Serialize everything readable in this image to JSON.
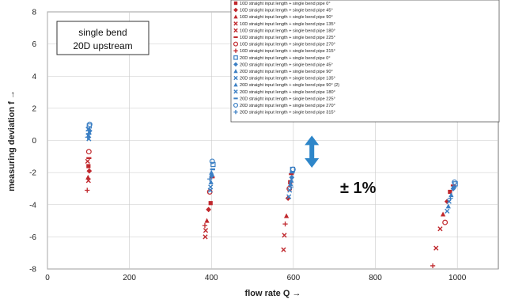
{
  "chart_data": {
    "type": "scatter",
    "xlabel": "flow rate Q →",
    "ylabel": "measuring deviation f →",
    "xlim": [
      0,
      1100
    ],
    "ylim": [
      -8,
      8
    ],
    "xticks": [
      0,
      200,
      400,
      600,
      800,
      1000
    ],
    "yticks": [
      -8,
      -6,
      -4,
      -2,
      0,
      2,
      4,
      6,
      8
    ],
    "grid": true,
    "legend_position": "top-right",
    "annotation_box": [
      "single bend",
      "20D upstream"
    ],
    "tolerance_label": "± 1%",
    "tolerance_range": [
      -1.7,
      0.3
    ],
    "tolerance_x": 645,
    "series": [
      {
        "name": "10D straight input length + single bend pipe 0°",
        "marker": "square",
        "color": "#c0282d",
        "points": [
          [
            100,
            -1.6
          ],
          [
            398,
            -3.9
          ],
          [
            592,
            -2.6
          ],
          [
            982,
            -3.2
          ]
        ]
      },
      {
        "name": "10D straight input length + single bend pipe 45°",
        "marker": "diamond",
        "color": "#c0282d",
        "points": [
          [
            102,
            -1.9
          ],
          [
            393,
            -4.3
          ],
          [
            587,
            -3.6
          ],
          [
            975,
            -3.8
          ]
        ]
      },
      {
        "name": "10D straight input length + single bend pipe 90°",
        "marker": "triangle",
        "color": "#c0282d",
        "points": [
          [
            99,
            -2.3
          ],
          [
            389,
            -5.0
          ],
          [
            583,
            -4.7
          ],
          [
            965,
            -4.6
          ]
        ]
      },
      {
        "name": "10D straight input length + single bend pipe 135°",
        "marker": "x",
        "color": "#c0282d",
        "points": [
          [
            100,
            -2.5
          ],
          [
            386,
            -5.6
          ],
          [
            578,
            -5.9
          ],
          [
            958,
            -5.5
          ]
        ]
      },
      {
        "name": "10D straight input length + single bend pipe 180°",
        "marker": "x",
        "color": "#c0282d",
        "points": [
          [
            98,
            -1.3
          ],
          [
            385,
            -6.0
          ],
          [
            576,
            -6.8
          ],
          [
            948,
            -6.7
          ]
        ]
      },
      {
        "name": "10D straight input length + single bend pipe 225°",
        "marker": "dash",
        "color": "#c0282d",
        "points": [
          [
            101,
            -1.1
          ],
          [
            402,
            -2.3
          ],
          [
            595,
            -2.1
          ],
          [
            990,
            -2.8
          ]
        ]
      },
      {
        "name": "10D straight input length + single bend pipe 270°",
        "marker": "circle",
        "color": "#c0282d",
        "points": [
          [
            101,
            -0.7
          ],
          [
            396,
            -3.2
          ],
          [
            590,
            -3.0
          ],
          [
            970,
            -5.1
          ]
        ]
      },
      {
        "name": "10D straight input length + single bend pipe 315°",
        "marker": "plus",
        "color": "#c0282d",
        "points": [
          [
            97,
            -3.1
          ],
          [
            384,
            -5.3
          ],
          [
            580,
            -5.2
          ],
          [
            940,
            -7.8
          ]
        ]
      },
      {
        "name": "20D straight input length + single bend pipe 0°",
        "marker": "square-open",
        "color": "#3b7fc4",
        "points": [
          [
            102,
            0.9
          ],
          [
            404,
            -1.5
          ],
          [
            598,
            -1.8
          ],
          [
            995,
            -2.7
          ]
        ]
      },
      {
        "name": "20D straight input length + single bend pipe 45°",
        "marker": "diamond",
        "color": "#3b7fc4",
        "points": [
          [
            103,
            0.6
          ],
          [
            401,
            -2.2
          ],
          [
            596,
            -2.3
          ],
          [
            990,
            -3.0
          ]
        ]
      },
      {
        "name": "20D straight input length + single bend pipe 90°",
        "marker": "triangle",
        "color": "#3b7fc4",
        "points": [
          [
            100,
            0.3
          ],
          [
            399,
            -2.6
          ],
          [
            593,
            -2.7
          ],
          [
            985,
            -3.4
          ]
        ]
      },
      {
        "name": "20D straight input length + single bend pipe 135°",
        "marker": "x",
        "color": "#3b7fc4",
        "points": [
          [
            101,
            0.1
          ],
          [
            398,
            -2.9
          ],
          [
            591,
            -3.1
          ],
          [
            980,
            -3.8
          ]
        ]
      },
      {
        "name": "20D straight input length + single bend pipe 90° (2)",
        "marker": "triangle",
        "color": "#3b7fc4",
        "points": [
          [
            102,
            0.5
          ],
          [
            400,
            -2.0
          ],
          [
            595,
            -2.5
          ],
          [
            978,
            -4.1
          ]
        ]
      },
      {
        "name": "20D straight input length + single bend pipe 180°",
        "marker": "x",
        "color": "#3b7fc4",
        "points": [
          [
            99,
            0.7
          ],
          [
            397,
            -3.1
          ],
          [
            589,
            -3.5
          ],
          [
            975,
            -4.4
          ]
        ]
      },
      {
        "name": "20D straight input length + single bend pipe 225°",
        "marker": "dash",
        "color": "#3b7fc4",
        "points": [
          [
            100,
            0.4
          ],
          [
            403,
            -1.8
          ],
          [
            597,
            -2.0
          ],
          [
            992,
            -2.9
          ]
        ]
      },
      {
        "name": "20D straight input length + single bend pipe 270°",
        "marker": "circle",
        "color": "#3b7fc4",
        "points": [
          [
            103,
            1.0
          ],
          [
            402,
            -1.3
          ],
          [
            599,
            -1.8
          ],
          [
            993,
            -2.6
          ]
        ]
      },
      {
        "name": "20D straight input length + single bend pipe 315°",
        "marker": "plus",
        "color": "#3b7fc4",
        "points": [
          [
            98,
            0.2
          ],
          [
            396,
            -2.4
          ],
          [
            594,
            -2.9
          ],
          [
            983,
            -3.6
          ]
        ]
      }
    ]
  }
}
